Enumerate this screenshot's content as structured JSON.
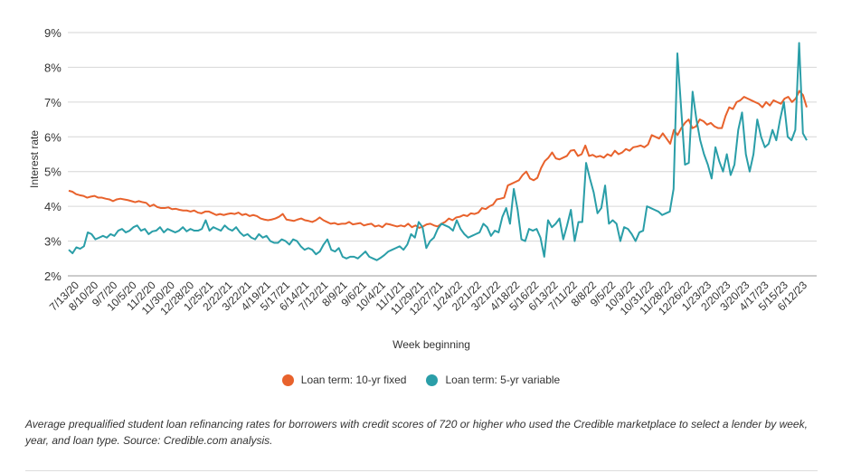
{
  "chart_data": {
    "type": "line",
    "ylabel": "Interest rate",
    "xlabel": "Week beginning",
    "ylim": [
      2,
      9
    ],
    "yticks": [
      "2%",
      "3%",
      "4%",
      "5%",
      "6%",
      "7%",
      "8%",
      "9%"
    ],
    "x_tick_labels": [
      "7/13/20",
      "8/10/20",
      "9/7/20",
      "10/5/20",
      "11/2/20",
      "11/30/20",
      "12/28/20",
      "1/25/21",
      "2/22/21",
      "3/22/21",
      "4/19/21",
      "5/17/21",
      "6/14/21",
      "7/12/21",
      "8/9/21",
      "9/6/21",
      "10/4/21",
      "11/1/21",
      "11/29/21",
      "12/27/21",
      "1/24/22",
      "2/21/22",
      "3/21/22",
      "4/18/22",
      "5/16/22",
      "6/13/22",
      "7/11/22",
      "8/8/22",
      "9/5/22",
      "10/3/22",
      "10/31/22",
      "11/28/22",
      "12/26/22",
      "1/23/23",
      "2/20/23",
      "3/20/23",
      "4/17/23",
      "5/15/23",
      "6/12/23"
    ],
    "legend_position": "bottom",
    "grid": true,
    "series": [
      {
        "name": "Loan term: 10-yr fixed",
        "color": "#e8622c",
        "values": [
          4.45,
          4.42,
          4.35,
          4.32,
          4.3,
          4.25,
          4.28,
          4.3,
          4.25,
          4.25,
          4.22,
          4.2,
          4.15,
          4.2,
          4.22,
          4.2,
          4.18,
          4.15,
          4.12,
          4.15,
          4.12,
          4.1,
          4.0,
          4.05,
          3.98,
          3.95,
          3.95,
          3.97,
          3.92,
          3.93,
          3.9,
          3.88,
          3.88,
          3.85,
          3.88,
          3.82,
          3.8,
          3.85,
          3.85,
          3.8,
          3.75,
          3.78,
          3.75,
          3.78,
          3.8,
          3.78,
          3.82,
          3.75,
          3.78,
          3.72,
          3.75,
          3.72,
          3.65,
          3.62,
          3.6,
          3.62,
          3.65,
          3.7,
          3.78,
          3.62,
          3.6,
          3.58,
          3.62,
          3.65,
          3.6,
          3.58,
          3.55,
          3.6,
          3.68,
          3.6,
          3.55,
          3.5,
          3.52,
          3.48,
          3.5,
          3.5,
          3.55,
          3.48,
          3.5,
          3.52,
          3.45,
          3.48,
          3.5,
          3.42,
          3.45,
          3.4,
          3.5,
          3.48,
          3.45,
          3.42,
          3.45,
          3.42,
          3.5,
          3.4,
          3.45,
          3.38,
          3.42,
          3.48,
          3.5,
          3.45,
          3.42,
          3.5,
          3.55,
          3.65,
          3.6,
          3.68,
          3.7,
          3.75,
          3.72,
          3.8,
          3.78,
          3.82,
          3.95,
          3.92,
          4.0,
          4.05,
          4.2,
          4.22,
          4.25,
          4.6,
          4.65,
          4.7,
          4.75,
          4.9,
          5.0,
          4.8,
          4.75,
          4.82,
          5.1,
          5.3,
          5.4,
          5.55,
          5.38,
          5.35,
          5.4,
          5.45,
          5.6,
          5.62,
          5.45,
          5.5,
          5.75,
          5.45,
          5.48,
          5.42,
          5.45,
          5.4,
          5.5,
          5.45,
          5.6,
          5.5,
          5.55,
          5.65,
          5.6,
          5.7,
          5.72,
          5.75,
          5.7,
          5.78,
          6.05,
          6.0,
          5.95,
          6.1,
          5.95,
          5.8,
          6.2,
          6.05,
          6.25,
          6.4,
          6.5,
          6.25,
          6.3,
          6.5,
          6.45,
          6.35,
          6.4,
          6.3,
          6.25,
          6.25,
          6.6,
          6.85,
          6.8,
          7.0,
          7.05,
          7.15,
          7.1,
          7.05,
          7.0,
          6.95,
          6.85,
          7.0,
          6.9,
          7.05,
          7.0,
          6.95,
          7.1,
          7.15,
          7.0,
          7.1,
          7.32,
          7.2,
          6.85
        ]
      },
      {
        "name": "Loan term: 5-yr variable",
        "color": "#2a9ea8",
        "values": [
          2.75,
          2.65,
          2.82,
          2.78,
          2.85,
          3.25,
          3.2,
          3.05,
          3.1,
          3.15,
          3.1,
          3.2,
          3.15,
          3.3,
          3.35,
          3.25,
          3.3,
          3.4,
          3.45,
          3.3,
          3.35,
          3.2,
          3.28,
          3.3,
          3.4,
          3.25,
          3.35,
          3.3,
          3.25,
          3.3,
          3.4,
          3.28,
          3.35,
          3.3,
          3.3,
          3.35,
          3.6,
          3.3,
          3.4,
          3.35,
          3.3,
          3.45,
          3.35,
          3.3,
          3.4,
          3.25,
          3.15,
          3.2,
          3.1,
          3.05,
          3.2,
          3.1,
          3.15,
          3.0,
          2.95,
          2.95,
          3.05,
          3.0,
          2.9,
          3.05,
          3.0,
          2.85,
          2.75,
          2.8,
          2.75,
          2.62,
          2.7,
          2.9,
          3.05,
          2.75,
          2.7,
          2.8,
          2.55,
          2.5,
          2.55,
          2.55,
          2.5,
          2.6,
          2.7,
          2.55,
          2.5,
          2.45,
          2.52,
          2.6,
          2.7,
          2.75,
          2.8,
          2.85,
          2.75,
          2.9,
          3.2,
          3.1,
          3.55,
          3.4,
          2.8,
          3.0,
          3.1,
          3.35,
          3.5,
          3.45,
          3.4,
          3.3,
          3.6,
          3.35,
          3.2,
          3.1,
          3.15,
          3.2,
          3.25,
          3.5,
          3.4,
          3.15,
          3.3,
          3.25,
          3.7,
          3.95,
          3.5,
          4.5,
          3.9,
          3.05,
          3.0,
          3.35,
          3.3,
          3.35,
          3.1,
          2.55,
          3.6,
          3.4,
          3.5,
          3.65,
          3.05,
          3.45,
          3.9,
          3.0,
          3.55,
          3.55,
          5.25,
          4.8,
          4.4,
          3.8,
          3.95,
          4.6,
          3.5,
          3.6,
          3.5,
          3.0,
          3.4,
          3.35,
          3.2,
          3.0,
          3.25,
          3.3,
          4.0,
          3.95,
          3.9,
          3.85,
          3.75,
          3.8,
          3.85,
          4.5,
          8.4,
          6.8,
          5.2,
          5.25,
          7.3,
          6.5,
          5.9,
          5.5,
          5.2,
          4.8,
          5.7,
          5.3,
          5.0,
          5.5,
          4.9,
          5.2,
          6.2,
          6.7,
          5.5,
          5.0,
          5.5,
          6.5,
          6.0,
          5.7,
          5.8,
          6.2,
          5.9,
          6.5,
          7.0,
          6.0,
          5.9,
          6.2,
          8.7,
          6.1,
          5.9
        ]
      }
    ]
  },
  "legend": {
    "items": [
      {
        "label": "Loan term: 10-yr fixed",
        "color": "#e8622c"
      },
      {
        "label": "Loan term: 5-yr variable",
        "color": "#2a9ea8"
      }
    ]
  },
  "caption": "Average prequalified student loan refinancing rates for borrowers with credit scores of 720 or higher who used the Credible marketplace to select a lender by week, year, and loan type. Source: Credible.com analysis."
}
